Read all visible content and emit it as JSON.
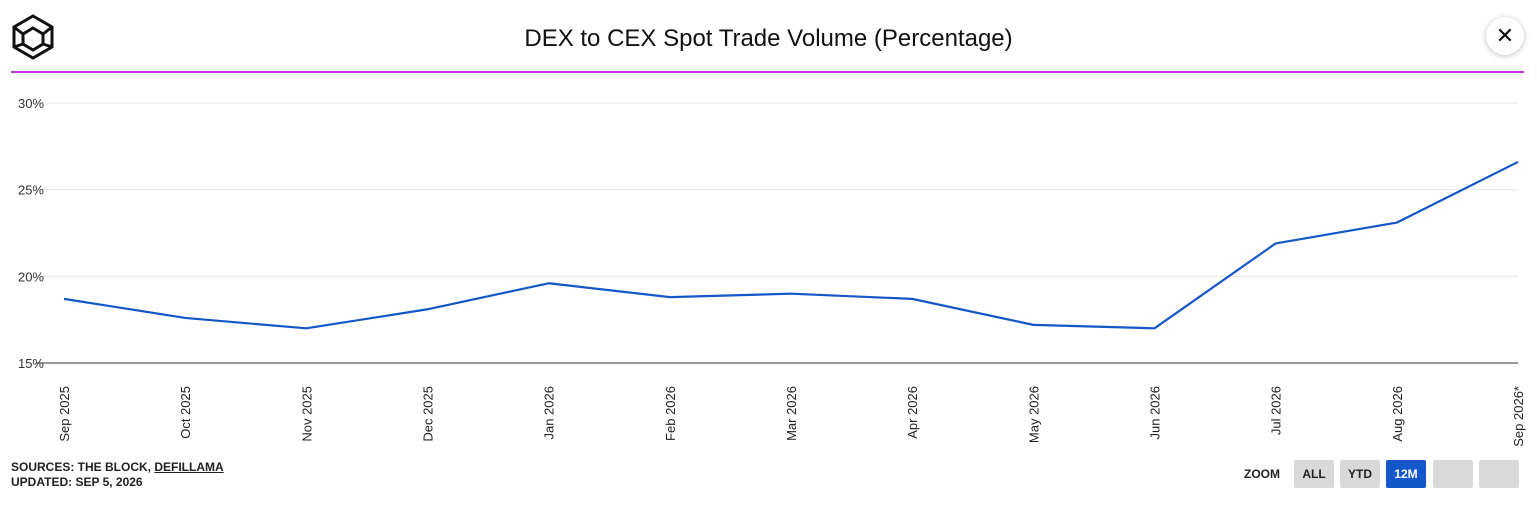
{
  "title": "DEX to CEX Spot Trade Volume (Percentage)",
  "close_icon": "close-icon",
  "logo_icon": "the-block-cube-logo",
  "footer": {
    "sources_prefix": "SOURCES: THE BLOCK, ",
    "sources_link": "DEFILLAMA",
    "updated": "UPDATED: SEP 5, 2026"
  },
  "zoom": {
    "label": "ZOOM",
    "buttons": [
      {
        "label": "ALL",
        "active": false
      },
      {
        "label": "YTD",
        "active": false
      },
      {
        "label": "12M",
        "active": true
      },
      {
        "label": "",
        "active": false
      },
      {
        "label": "",
        "active": false
      }
    ]
  },
  "colors": {
    "line": "#1457c8",
    "divider": "#c03bd4",
    "active_button": "#1457c8",
    "button": "#d9d9d9"
  },
  "chart_data": {
    "type": "line",
    "title": "DEX to CEX Spot Trade Volume (Percentage)",
    "xlabel": "",
    "ylabel": "",
    "categories": [
      "Sep 2025",
      "Oct 2025",
      "Nov 2025",
      "Dec 2025",
      "Jan 2026",
      "Feb 2026",
      "Mar 2026",
      "Apr 2026",
      "May 2026",
      "Jun 2026",
      "Jul 2026",
      "Aug 2026",
      "Sep 2026*"
    ],
    "series": [
      {
        "values": [
          18.7,
          17.6,
          17.0,
          18.1,
          19.6,
          18.8,
          19.0,
          18.7,
          17.2,
          17.0,
          21.9,
          23.1,
          26.6
        ]
      }
    ],
    "ylim": [
      15,
      30
    ],
    "yticks": [
      "15%",
      "20%",
      "25%",
      "30%"
    ],
    "ytick_values": [
      15,
      20,
      25,
      30
    ],
    "grid": true
  }
}
